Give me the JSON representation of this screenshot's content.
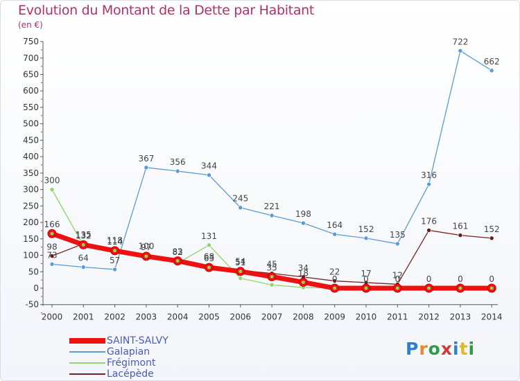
{
  "title": "Evolution du Montant de la Dette par Habitant",
  "subtitle": "(en €)",
  "logo": {
    "text": "Proxiti",
    "colors": [
      "#2d7fd0",
      "#e8892a",
      "#2d9c4a",
      "#d23b3b",
      "#2d7fd0",
      "#e8b52a",
      "#2d9c4a"
    ]
  },
  "chart_data": {
    "type": "line",
    "x": [
      "2000",
      "2001",
      "2002",
      "2003",
      "2004",
      "2005",
      "2006",
      "2007",
      "2008",
      "2009",
      "2010",
      "2011",
      "2012",
      "2013",
      "2014"
    ],
    "ylim": [
      -50,
      750
    ],
    "yticks": [
      -50,
      0,
      50,
      100,
      150,
      200,
      250,
      300,
      350,
      400,
      450,
      500,
      550,
      600,
      650,
      700,
      750
    ],
    "grid": false,
    "legend_position": "bottom-left",
    "series": [
      {
        "name": "Galapian",
        "color": "#5b9bd5",
        "marker": "#5b9bd5",
        "values": [
          73,
          64,
          57,
          367,
          356,
          344,
          245,
          221,
          198,
          164,
          152,
          135,
          316,
          722,
          662
        ],
        "labels": [
          "73",
          "64",
          "57",
          "367",
          "356",
          "344",
          "245",
          "221",
          "198",
          "164",
          "152",
          "135",
          "316",
          "722",
          "662"
        ]
      },
      {
        "name": "Frégimont",
        "color": "#8fd66a",
        "marker": "#8fd66a",
        "values": [
          300,
          130,
          118,
          96,
          76,
          131,
          30,
          10,
          2,
          0,
          0,
          0,
          0,
          0,
          0
        ],
        "labels": [
          "300",
          "",
          "",
          "",
          "",
          "131",
          "",
          "",
          "",
          "",
          "",
          "",
          "",
          "",
          ""
        ]
      },
      {
        "name": "Lacépède",
        "color": "#7a2020",
        "marker": "#6b1a1a",
        "values": [
          98,
          135,
          118,
          100,
          82,
          68,
          54,
          45,
          34,
          22,
          17,
          12,
          176,
          161,
          152
        ],
        "labels": [
          "98",
          "135",
          "118",
          "100",
          "82",
          "68",
          "54",
          "45",
          "34",
          "22",
          "17",
          "12",
          "176",
          "161",
          "152"
        ]
      },
      {
        "name": "SAINT-SALVY",
        "color": "#ee1111",
        "marker": "#ee1111",
        "values": [
          166,
          132,
          114,
          97,
          83,
          63,
          51,
          35,
          18,
          0,
          0,
          0,
          0,
          0,
          0
        ],
        "labels": [
          "166",
          "132",
          "114",
          "97",
          "83",
          "63",
          "51",
          "35",
          "18",
          "0",
          "0",
          "0",
          "0",
          "0",
          "0"
        ]
      }
    ]
  }
}
